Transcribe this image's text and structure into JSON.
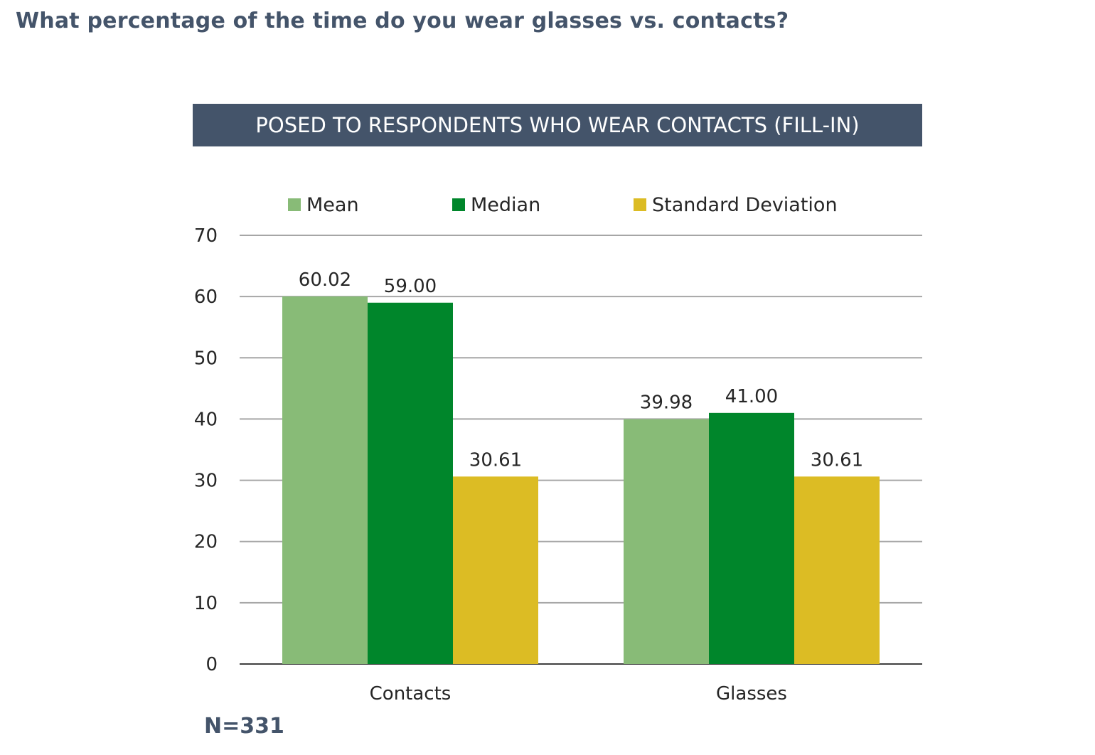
{
  "page": {
    "title": "What percentage of the time do you wear glasses vs. contacts?",
    "banner": "POSED TO RESPONDENTS WHO WEAR CONTACTS (FILL-IN)",
    "footnote": "N=331"
  },
  "chart_data": {
    "type": "bar",
    "categories": [
      "Contacts",
      "Glasses"
    ],
    "series": [
      {
        "name": "Mean",
        "values": [
          60.02,
          39.98
        ],
        "labels": [
          "60.02",
          "39.98"
        ],
        "color": "#88bb77"
      },
      {
        "name": "Median",
        "values": [
          59.0,
          41.0
        ],
        "labels": [
          "59.00",
          "41.00"
        ],
        "color": "#00862b"
      },
      {
        "name": "Standard Deviation",
        "values": [
          30.61,
          30.61
        ],
        "labels": [
          "30.61",
          "30.61"
        ],
        "color": "#dcbc24"
      }
    ],
    "ylim": [
      0,
      70
    ],
    "yticks": [
      "0",
      "10",
      "20",
      "30",
      "40",
      "50",
      "60",
      "70"
    ],
    "grid": true,
    "legend": "top",
    "gridline_color": "#a6a6a6",
    "axis_color": "#404040"
  }
}
